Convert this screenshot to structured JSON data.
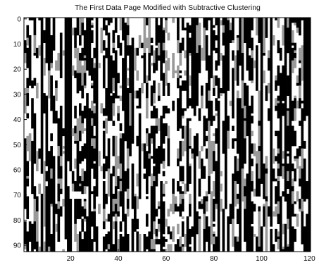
{
  "chart_data": {
    "type": "heatmap",
    "title": "The First Data Page Modified with Subtractive Clustering",
    "xlabel": "",
    "ylabel": "",
    "x_range": [
      1,
      120
    ],
    "y_range": [
      0,
      92
    ],
    "y_axis_direction": "top-to-bottom",
    "x_ticks": [
      20,
      40,
      60,
      80,
      100,
      120
    ],
    "y_ticks": [
      0,
      10,
      20,
      30,
      40,
      50,
      60,
      70,
      80,
      90
    ],
    "grid": false,
    "colormap": [
      "#000000",
      "#9a9a9a",
      "#ffffff"
    ],
    "description_of_cells": "binary/gray image of 120 columns by 92 rows, vertical stripe pattern"
  }
}
